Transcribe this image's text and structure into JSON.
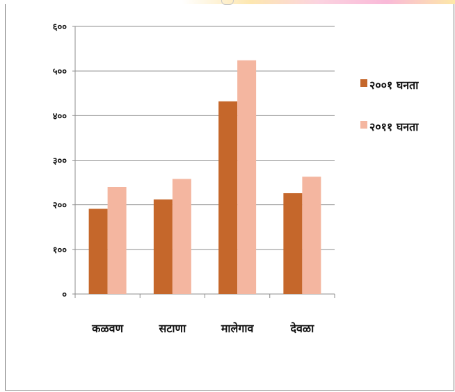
{
  "chart_data": {
    "type": "bar",
    "categories": [
      "कळवण",
      "सटाणा",
      "मालेगाव",
      "देवळा"
    ],
    "series": [
      {
        "name": "२००१ घनता",
        "color": "#c5672b",
        "values": [
          191,
          212,
          432,
          226
        ]
      },
      {
        "name": "२०११ घनता",
        "color": "#f4b6a0",
        "values": [
          240,
          258,
          524,
          263
        ]
      }
    ],
    "ylim": [
      0,
      600
    ],
    "yticks": [
      0,
      100,
      200,
      300,
      400,
      500,
      600
    ],
    "ytick_labels": [
      "०",
      "१००",
      "२००",
      "३००",
      "४००",
      "५००",
      "६००"
    ],
    "grid": true,
    "legend_position": "right",
    "title": "",
    "xlabel": "",
    "ylabel": ""
  }
}
